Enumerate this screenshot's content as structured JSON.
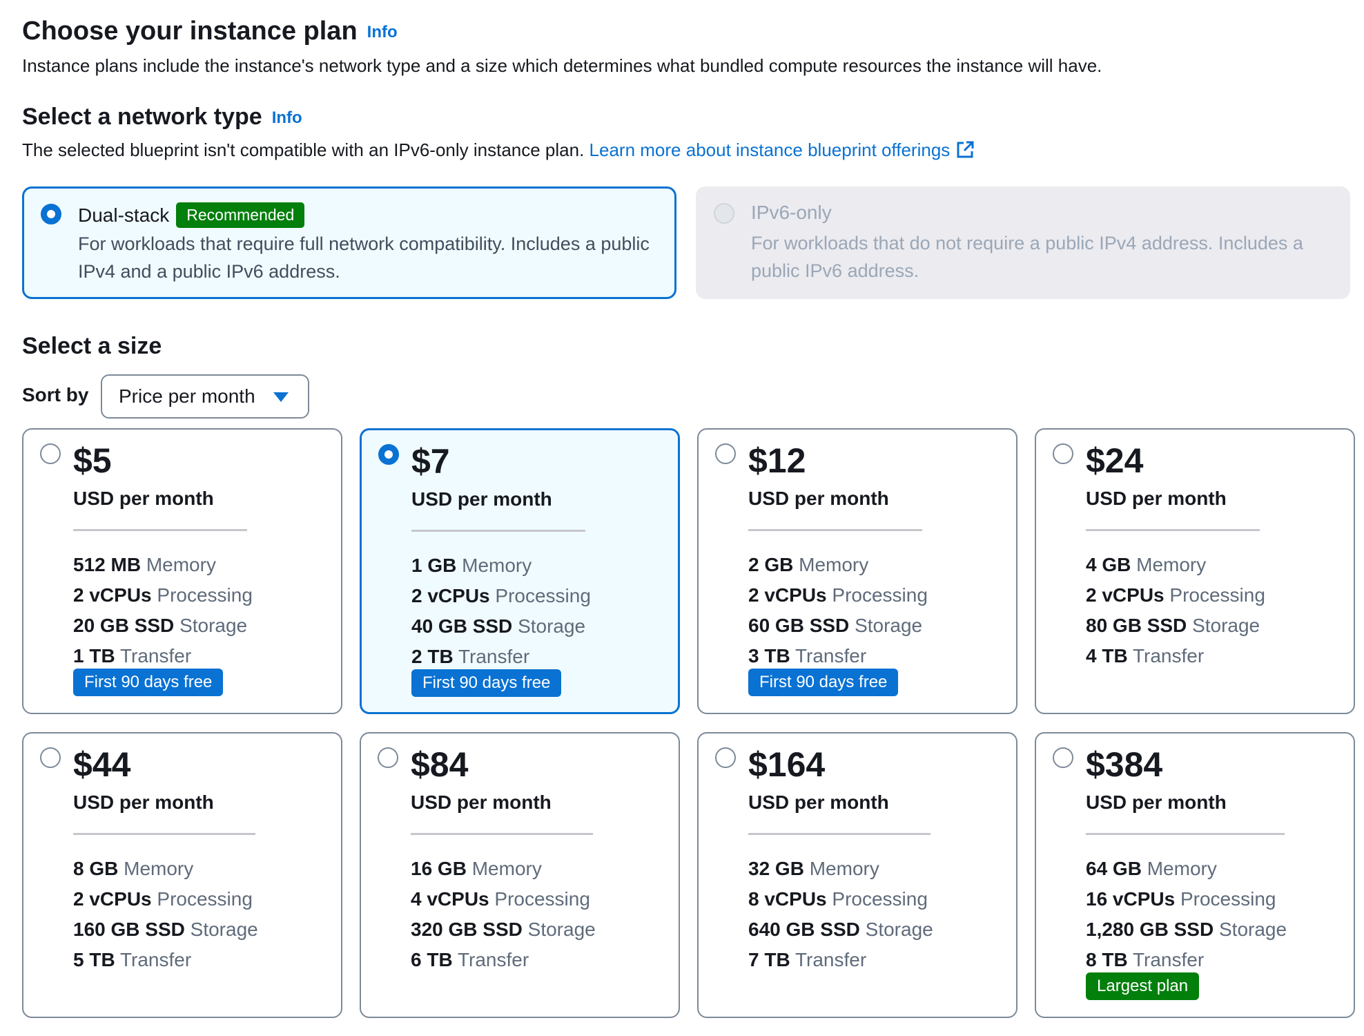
{
  "header": {
    "title": "Choose your instance plan",
    "info": "Info",
    "description": "Instance plans include the instance's network type and a size which determines what bundled compute resources the instance will have."
  },
  "network": {
    "title": "Select a network type",
    "info": "Info",
    "description": "The selected blueprint isn't compatible with an IPv6-only instance plan.",
    "link": "Learn more about instance blueprint offerings",
    "link_icon": "external-link-icon",
    "options": [
      {
        "label": "Dual-stack",
        "badge": "Recommended",
        "description": "For workloads that require full network compatibility. Includes a public IPv4 and a public IPv6 address.",
        "selected": true,
        "disabled": false
      },
      {
        "label": "IPv6-only",
        "description": "For workloads that do not require a public IPv4 address. Includes a public IPv6 address.",
        "selected": false,
        "disabled": true
      }
    ]
  },
  "size": {
    "title": "Select a size",
    "sort_label": "Sort by",
    "sort_value": "Price per month",
    "plans": [
      {
        "price": "$5",
        "unit": "USD per month",
        "memory": "512 MB",
        "memory_label": "Memory",
        "cpu": "2 vCPUs",
        "cpu_label": "Processing",
        "storage": "20 GB SSD",
        "storage_label": "Storage",
        "transfer": "1 TB",
        "transfer_label": "Transfer",
        "badge": "First 90 days free",
        "selected": false
      },
      {
        "price": "$7",
        "unit": "USD per month",
        "memory": "1 GB",
        "memory_label": "Memory",
        "cpu": "2 vCPUs",
        "cpu_label": "Processing",
        "storage": "40 GB SSD",
        "storage_label": "Storage",
        "transfer": "2 TB",
        "transfer_label": "Transfer",
        "badge": "First 90 days free",
        "selected": true
      },
      {
        "price": "$12",
        "unit": "USD per month",
        "memory": "2 GB",
        "memory_label": "Memory",
        "cpu": "2 vCPUs",
        "cpu_label": "Processing",
        "storage": "60 GB SSD",
        "storage_label": "Storage",
        "transfer": "3 TB",
        "transfer_label": "Transfer",
        "badge": "First 90 days free",
        "selected": false
      },
      {
        "price": "$24",
        "unit": "USD per month",
        "memory": "4 GB",
        "memory_label": "Memory",
        "cpu": "2 vCPUs",
        "cpu_label": "Processing",
        "storage": "80 GB SSD",
        "storage_label": "Storage",
        "transfer": "4 TB",
        "transfer_label": "Transfer",
        "selected": false
      },
      {
        "price": "$44",
        "unit": "USD per month",
        "memory": "8 GB",
        "memory_label": "Memory",
        "cpu": "2 vCPUs",
        "cpu_label": "Processing",
        "storage": "160 GB SSD",
        "storage_label": "Storage",
        "transfer": "5 TB",
        "transfer_label": "Transfer",
        "selected": false
      },
      {
        "price": "$84",
        "unit": "USD per month",
        "memory": "16 GB",
        "memory_label": "Memory",
        "cpu": "4 vCPUs",
        "cpu_label": "Processing",
        "storage": "320 GB SSD",
        "storage_label": "Storage",
        "transfer": "6 TB",
        "transfer_label": "Transfer",
        "selected": false
      },
      {
        "price": "$164",
        "unit": "USD per month",
        "memory": "32 GB",
        "memory_label": "Memory",
        "cpu": "8 vCPUs",
        "cpu_label": "Processing",
        "storage": "640 GB SSD",
        "storage_label": "Storage",
        "transfer": "7 TB",
        "transfer_label": "Transfer",
        "selected": false
      },
      {
        "price": "$384",
        "unit": "USD per month",
        "memory": "64 GB",
        "memory_label": "Memory",
        "cpu": "16 vCPUs",
        "cpu_label": "Processing",
        "storage": "1,280 GB SSD",
        "storage_label": "Storage",
        "transfer": "8 TB",
        "transfer_label": "Transfer",
        "badge": "Largest plan",
        "selected": false
      }
    ]
  },
  "colors": {
    "accent": "#0972d3",
    "selected_bg": "#f0fbff",
    "recommended_badge": "#037f0c",
    "free_badge": "#0972d3",
    "largest_badge": "#037f0c",
    "disabled_bg": "#ebebf0"
  }
}
